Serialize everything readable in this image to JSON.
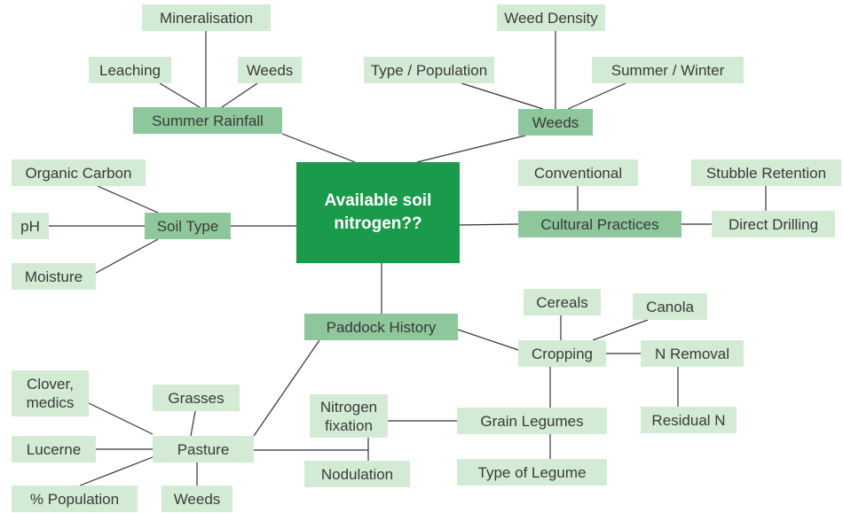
{
  "nodes": [
    {
      "label": "Available soil nitrogen??"
    },
    {
      "label": "Summer Rainfall"
    },
    {
      "label": "Weeds"
    },
    {
      "label": "Soil Type"
    },
    {
      "label": "Cultural Practices"
    },
    {
      "label": "Paddock History"
    },
    {
      "label": "Mineralisation"
    },
    {
      "label": "Leaching"
    },
    {
      "label": "Weeds"
    },
    {
      "label": "Weed Density"
    },
    {
      "label": "Type / Population"
    },
    {
      "label": "Summer / Winter"
    },
    {
      "label": "Organic Carbon"
    },
    {
      "label": "pH"
    },
    {
      "label": "Moisture"
    },
    {
      "label": "Conventional"
    },
    {
      "label": "Stubble Retention"
    },
    {
      "label": "Direct Drilling"
    },
    {
      "label": "Cereals"
    },
    {
      "label": "Canola"
    },
    {
      "label": "Cropping"
    },
    {
      "label": "N Removal"
    },
    {
      "label": "Residual N"
    },
    {
      "label": "Grain Legumes"
    },
    {
      "label": "Type of Legume"
    },
    {
      "label": "Nitrogen fixation"
    },
    {
      "label": "Nodulation"
    },
    {
      "label": "Grasses"
    },
    {
      "label": "Clover, medics"
    },
    {
      "label": "Lucerne"
    },
    {
      "label": "Pasture"
    },
    {
      "label": "% Population"
    },
    {
      "label": "Weeds"
    }
  ]
}
